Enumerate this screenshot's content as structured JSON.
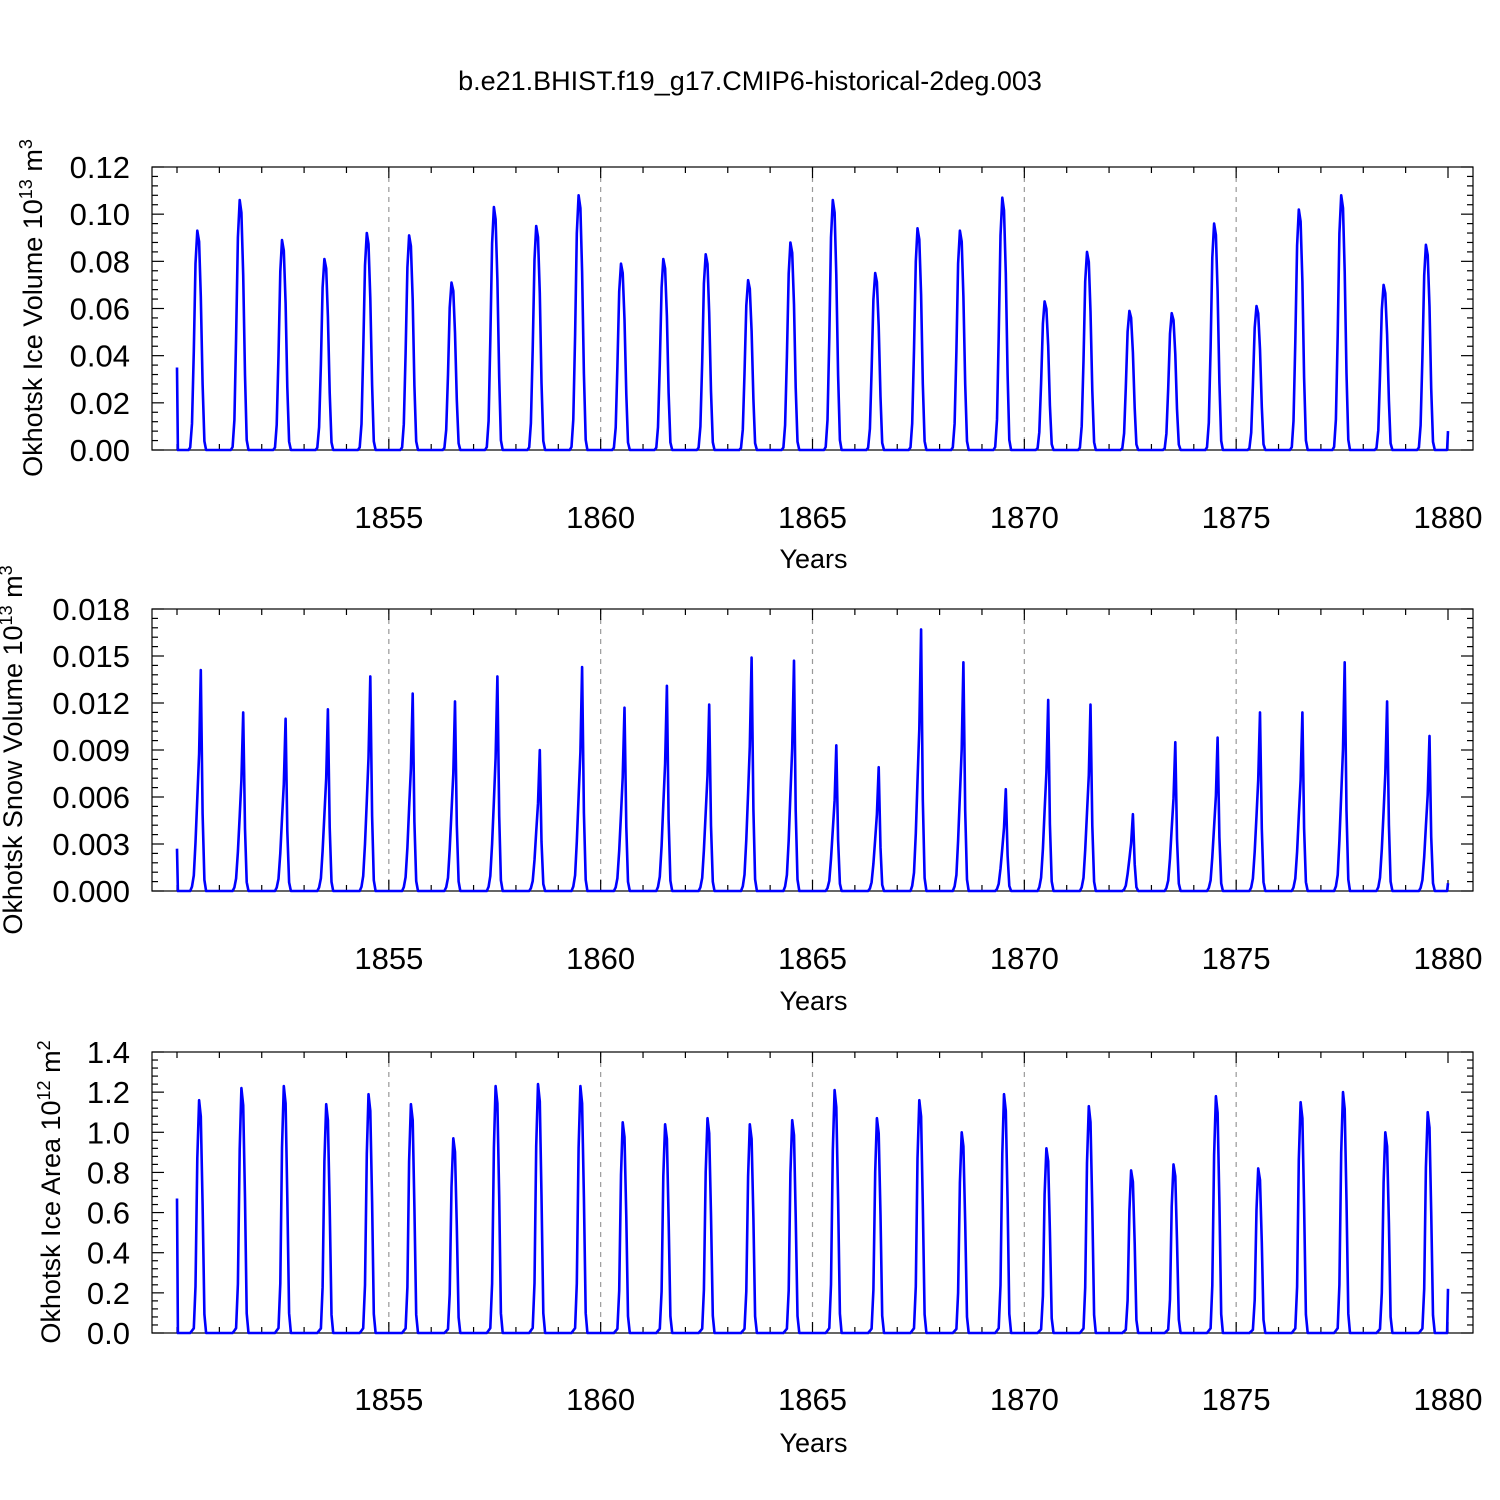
{
  "figure": {
    "title": "b.e21.BHIST.f19_g17.CMIP6-historical-2deg.003"
  },
  "colors": {
    "line": "#0000ff",
    "grid": "#999999",
    "axis": "#000000"
  },
  "chart_data": [
    {
      "type": "line",
      "name": "ice-volume",
      "title": "",
      "xlabel": "Years",
      "ylabel": "Okhotsk Ice Volume 10",
      "ylabel_sup": "13",
      "ylabel_unit": " m",
      "ylabel_unit_sup": "3",
      "x_start": 1850.0,
      "x_step": 0.08333,
      "xlim": [
        1850.0,
        1880.0
      ],
      "xticks": [
        1855,
        1860,
        1865,
        1870,
        1875,
        1880
      ],
      "xtick_labels": [
        "1855",
        "1860",
        "1865",
        "1870",
        "1875",
        "1880"
      ],
      "ylim": [
        0.0,
        0.12
      ],
      "yticks": [
        0.0,
        0.02,
        0.04,
        0.06,
        0.08,
        0.1,
        0.12
      ],
      "ytick_labels": [
        "0.00",
        "0.02",
        "0.04",
        "0.06",
        "0.08",
        "0.10",
        "0.12"
      ],
      "grid_x": [
        1855,
        1860,
        1865,
        1870,
        1875
      ],
      "peaks": [
        0.093,
        0.106,
        0.089,
        0.081,
        0.092,
        0.091,
        0.071,
        0.103,
        0.095,
        0.108,
        0.079,
        0.081,
        0.083,
        0.072,
        0.088,
        0.106,
        0.075,
        0.094,
        0.093,
        0.107,
        0.063,
        0.084,
        0.059,
        0.058,
        0.096,
        0.061,
        0.102,
        0.108,
        0.07,
        0.087
      ],
      "start_value": 0.035,
      "end_value": 0.008,
      "shape": [
        0.0,
        0.0,
        0.0,
        0.0,
        0.0,
        0.0,
        0.0,
        0.012,
        0.12,
        0.45,
        0.85,
        1.0,
        0.95,
        0.7,
        0.3,
        0.04,
        0.0,
        0.0,
        0.0,
        0.0,
        0.0,
        0.0,
        0.0,
        0.0
      ]
    },
    {
      "type": "line",
      "name": "snow-volume",
      "title": "",
      "xlabel": "Years",
      "ylabel": "Okhotsk Snow Volume 10",
      "ylabel_sup": "13",
      "ylabel_unit": " m",
      "ylabel_unit_sup": "3",
      "x_start": 1850.0,
      "x_step": 0.08333,
      "xlim": [
        1850.0,
        1880.0
      ],
      "xticks": [
        1855,
        1860,
        1865,
        1870,
        1875,
        1880
      ],
      "xtick_labels": [
        "1855",
        "1860",
        "1865",
        "1870",
        "1875",
        "1880"
      ],
      "ylim": [
        0.0,
        0.018
      ],
      "yticks": [
        0.0,
        0.003,
        0.006,
        0.009,
        0.012,
        0.015,
        0.018
      ],
      "ytick_labels": [
        "0.000",
        "0.003",
        "0.006",
        "0.009",
        "0.012",
        "0.015",
        "0.018"
      ],
      "grid_x": [
        1855,
        1860,
        1865,
        1870,
        1875
      ],
      "peaks": [
        0.0141,
        0.0114,
        0.011,
        0.0116,
        0.0137,
        0.0126,
        0.0121,
        0.0137,
        0.009,
        0.0143,
        0.0117,
        0.0131,
        0.0119,
        0.0149,
        0.0147,
        0.0093,
        0.0079,
        0.0167,
        0.0146,
        0.0065,
        0.0122,
        0.0119,
        0.0049,
        0.0095,
        0.0098,
        0.0114,
        0.0114,
        0.0146,
        0.0121,
        0.0099
      ],
      "start_value": 0.0027,
      "end_value": 0.0005,
      "shape": [
        0.0,
        0.0,
        0.0,
        0.0,
        0.0,
        0.0,
        0.0,
        0.0,
        0.02,
        0.07,
        0.22,
        0.42,
        0.62,
        1.0,
        0.35,
        0.05,
        0.0,
        0.0,
        0.0,
        0.0,
        0.0,
        0.0,
        0.0,
        0.0
      ]
    },
    {
      "type": "line",
      "name": "ice-area",
      "title": "",
      "xlabel": "Years",
      "ylabel": "Okhotsk Ice Area 10",
      "ylabel_sup": "12",
      "ylabel_unit": " m",
      "ylabel_unit_sup": "2",
      "x_start": 1850.0,
      "x_step": 0.08333,
      "xlim": [
        1850.0,
        1880.0
      ],
      "xticks": [
        1855,
        1860,
        1865,
        1870,
        1875,
        1880
      ],
      "xtick_labels": [
        "1855",
        "1860",
        "1865",
        "1870",
        "1875",
        "1880"
      ],
      "ylim": [
        0.0,
        1.4
      ],
      "yticks": [
        0.0,
        0.2,
        0.4,
        0.6,
        0.8,
        1.0,
        1.2,
        1.4
      ],
      "ytick_labels": [
        "0.0",
        "0.2",
        "0.4",
        "0.6",
        "0.8",
        "1.0",
        "1.2",
        "1.4"
      ],
      "grid_x": [
        1855,
        1860,
        1865,
        1870,
        1875
      ],
      "peaks": [
        1.16,
        1.22,
        1.23,
        1.14,
        1.19,
        1.14,
        0.97,
        1.23,
        1.24,
        1.23,
        1.05,
        1.04,
        1.07,
        1.04,
        1.06,
        1.21,
        1.07,
        1.16,
        1.0,
        1.19,
        0.92,
        1.13,
        0.81,
        0.84,
        1.18,
        0.82,
        1.15,
        1.2,
        1.0,
        1.1
      ],
      "start_value": 0.67,
      "end_value": 0.22,
      "shape": [
        0.0,
        0.0,
        0.0,
        0.0,
        0.0,
        0.0,
        0.0,
        0.0,
        0.01,
        0.02,
        0.2,
        0.75,
        1.0,
        0.93,
        0.55,
        0.08,
        0.0,
        0.0,
        0.0,
        0.0,
        0.0,
        0.0,
        0.0,
        0.0
      ]
    }
  ]
}
